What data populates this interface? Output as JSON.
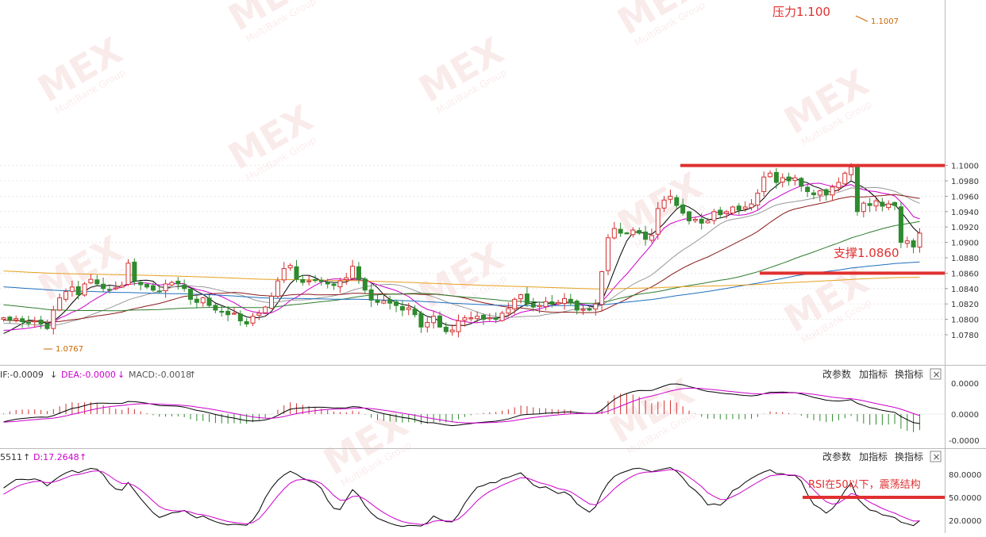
{
  "chart_data": [
    {
      "type": "candlestick",
      "panel": "price",
      "ylim": [
        1.0765,
        1.1012
      ],
      "y_ticks": [
        "1.1000",
        "1.0980",
        "1.0960",
        "1.0940",
        "1.0920",
        "1.0900",
        "1.0880",
        "1.0860",
        "1.0840",
        "1.0820",
        "1.0800",
        "1.0780"
      ],
      "y_tick_values": [
        1.1,
        1.098,
        1.096,
        1.094,
        1.092,
        1.09,
        1.088,
        1.086,
        1.084,
        1.082,
        1.08,
        1.078
      ],
      "closes": [
        1.0802,
        1.0799,
        1.0801,
        1.0797,
        1.0796,
        1.0798,
        1.0794,
        1.0788,
        1.0812,
        1.0828,
        1.0836,
        1.0842,
        1.0832,
        1.0846,
        1.0852,
        1.0846,
        1.084,
        1.0838,
        1.0841,
        1.0844,
        1.0873,
        1.085,
        1.0845,
        1.0842,
        1.0838,
        1.0836,
        1.0846,
        1.0848,
        1.0846,
        1.084,
        1.0826,
        1.0822,
        1.0828,
        1.0818,
        1.0812,
        1.081,
        1.0806,
        1.0808,
        1.0798,
        1.0794,
        1.0804,
        1.0808,
        1.0816,
        1.083,
        1.085,
        1.0866,
        1.087,
        1.0852,
        1.0848,
        1.085,
        1.0851,
        1.0849,
        1.0846,
        1.0844,
        1.085,
        1.0854,
        1.0869,
        1.0852,
        1.0838,
        1.0825,
        1.0822,
        1.0824,
        1.0821,
        1.0818,
        1.0812,
        1.0815,
        1.0806,
        1.079,
        1.0796,
        1.0804,
        1.079,
        1.0784,
        1.0786,
        1.0798,
        1.0802,
        1.0802,
        1.0804,
        1.08,
        1.0802,
        1.08,
        1.0808,
        1.0814,
        1.0826,
        1.0832,
        1.082,
        1.0816,
        1.0818,
        1.0823,
        1.082,
        1.0822,
        1.0827,
        1.0822,
        1.0812,
        1.0813,
        1.0812,
        1.082,
        1.0862,
        1.0906,
        1.0918,
        1.0912,
        1.0912,
        1.0916,
        1.0912,
        1.0904,
        1.0909,
        1.0944,
        1.0955,
        1.096,
        1.0948,
        1.0938,
        1.0928,
        1.093,
        1.0925,
        1.0928,
        1.094,
        1.0936,
        1.094,
        1.0946,
        1.0942,
        1.0946,
        1.095,
        1.0964,
        1.0985,
        1.099,
        1.0978,
        1.0984,
        1.098,
        1.0984,
        1.0973,
        1.0966,
        1.0962,
        1.0967,
        1.0962,
        1.0972,
        1.0978,
        1.099,
        1.0998,
        1.094,
        1.0951,
        1.0948,
        1.0954,
        1.0947,
        1.095,
        1.0948,
        1.09,
        1.0902,
        1.0894,
        1.0912
      ],
      "moving_average_colors": [
        "#000000",
        "#cc00cc",
        "#999999",
        "#8b1a1a",
        "#2e7d2e",
        "#1f6fbf",
        "#e6a020"
      ],
      "annotations": [
        {
          "label": "1.0767",
          "value": 1.0767,
          "color": "#cc6600"
        },
        {
          "label": "1.1007",
          "value": 1.1007,
          "color": "#cc6600"
        }
      ],
      "levels": [
        {
          "label": "压力1.100",
          "value": 1.1,
          "color": "#e03030"
        },
        {
          "label": "支撑1.0860",
          "value": 1.086,
          "color": "#e03030"
        }
      ],
      "up_color": "#d23030",
      "down_color": "#2e8b2e"
    },
    {
      "type": "bar",
      "panel": "macd",
      "header": {
        "dif": "IF:-0.0009",
        "dif_arrow": "↓",
        "dea": "DEA:-0.0000",
        "dea_arrow": "↓",
        "macd": "MACD:-0.0018",
        "macd_arrow": "↑"
      },
      "y_ticks": [
        "0.0000",
        "0.0000",
        "-0.0000"
      ],
      "buttons": [
        "改参数",
        "加指标",
        "换指标"
      ]
    },
    {
      "type": "line",
      "panel": "kdj",
      "header": {
        "k": "5511",
        "k_arrow": "↑",
        "d": "D:17.2648",
        "d_arrow": "↑"
      },
      "y_ticks": [
        "80.0000",
        "50.0000",
        "20.0000"
      ],
      "ylim": [
        5,
        95
      ],
      "level": {
        "label": "RSI在50以下，震荡结构",
        "value": 50,
        "color": "#e03030"
      },
      "buttons": [
        "改参数",
        "加指标",
        "换指标"
      ]
    }
  ],
  "watermark": {
    "text": "MEX",
    "subtext": "MultiBank Group"
  },
  "close_glyph": "×"
}
